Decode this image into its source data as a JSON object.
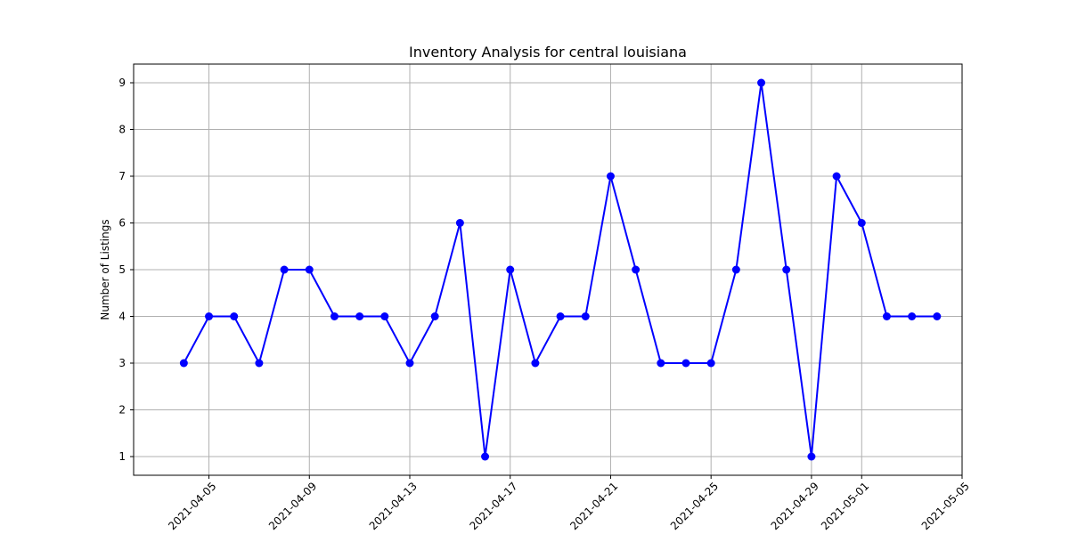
{
  "chart_data": {
    "type": "line",
    "title": "Inventory Analysis for central louisiana",
    "xlabel": "",
    "ylabel": "Number of Listings",
    "x": [
      "2021-04-04",
      "2021-04-05",
      "2021-04-06",
      "2021-04-07",
      "2021-04-08",
      "2021-04-09",
      "2021-04-10",
      "2021-04-11",
      "2021-04-12",
      "2021-04-13",
      "2021-04-14",
      "2021-04-15",
      "2021-04-16",
      "2021-04-17",
      "2021-04-18",
      "2021-04-19",
      "2021-04-20",
      "2021-04-21",
      "2021-04-22",
      "2021-04-23",
      "2021-04-24",
      "2021-04-25",
      "2021-04-26",
      "2021-04-27",
      "2021-04-28",
      "2021-04-29",
      "2021-04-30",
      "2021-05-01",
      "2021-05-02",
      "2021-05-03",
      "2021-05-04"
    ],
    "series": [
      {
        "values": [
          3,
          4,
          4,
          3,
          5,
          5,
          4,
          4,
          4,
          3,
          4,
          6,
          1,
          5,
          3,
          4,
          4,
          7,
          5,
          3,
          3,
          3,
          5,
          9,
          5,
          1,
          7,
          6,
          4,
          4,
          4
        ],
        "color": "#0000ff",
        "marker": "circle"
      }
    ],
    "xticks": [
      "2021-04-05",
      "2021-04-09",
      "2021-04-13",
      "2021-04-17",
      "2021-04-21",
      "2021-04-25",
      "2021-04-29",
      "2021-05-01",
      "2021-05-05"
    ],
    "yticks": [
      1,
      2,
      3,
      4,
      5,
      6,
      7,
      8,
      9
    ],
    "xlim": [
      "2021-04-02",
      "2021-05-05"
    ],
    "ylim": [
      0.6,
      9.4
    ],
    "grid": true,
    "xtick_rotation": 45
  }
}
